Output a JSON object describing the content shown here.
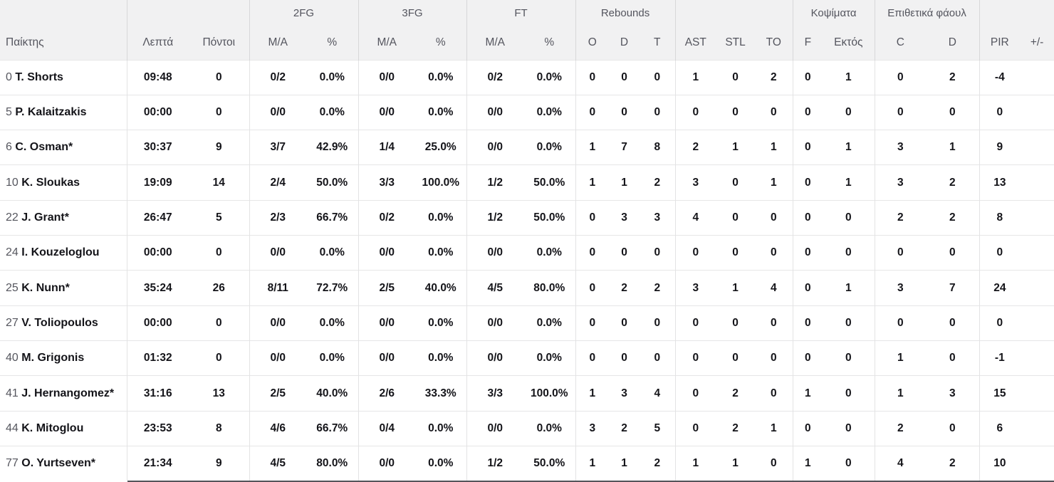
{
  "header": {
    "groups": [
      {
        "label": ""
      },
      {
        "label": ""
      },
      {
        "label": "2FG"
      },
      {
        "label": "3FG"
      },
      {
        "label": "FT"
      },
      {
        "label": "Rebounds"
      },
      {
        "label": ""
      },
      {
        "label": "Κοψίματα"
      },
      {
        "label": "Επιθετικά φάουλ"
      },
      {
        "label": ""
      }
    ],
    "columns": [
      "Παίκτης",
      "Λεπτά",
      "Πόντοι",
      "M/A",
      "%",
      "M/A",
      "%",
      "M/A",
      "%",
      "O",
      "D",
      "T",
      "AST",
      "STL",
      "TO",
      "F",
      "Εκτός",
      "C",
      "D",
      "PIR",
      "+/-"
    ]
  },
  "rows": [
    {
      "num": "0",
      "name": "T. Shorts",
      "min": "09:48",
      "pts": "0",
      "fg2": "0/2",
      "fg2p": "0.0%",
      "fg3": "0/0",
      "fg3p": "0.0%",
      "ft": "0/2",
      "ftp": "0.0%",
      "o": "0",
      "d": "0",
      "t": "0",
      "ast": "1",
      "stl": "0",
      "to": "2",
      "f": "0",
      "ektos": "1",
      "c": "0",
      "dd": "2",
      "pir": "-4",
      "pm": ""
    },
    {
      "num": "5",
      "name": "P. Kalaitzakis",
      "min": "00:00",
      "pts": "0",
      "fg2": "0/0",
      "fg2p": "0.0%",
      "fg3": "0/0",
      "fg3p": "0.0%",
      "ft": "0/0",
      "ftp": "0.0%",
      "o": "0",
      "d": "0",
      "t": "0",
      "ast": "0",
      "stl": "0",
      "to": "0",
      "f": "0",
      "ektos": "0",
      "c": "0",
      "dd": "0",
      "pir": "0",
      "pm": ""
    },
    {
      "num": "6",
      "name": "C. Osman*",
      "min": "30:37",
      "pts": "9",
      "fg2": "3/7",
      "fg2p": "42.9%",
      "fg3": "1/4",
      "fg3p": "25.0%",
      "ft": "0/0",
      "ftp": "0.0%",
      "o": "1",
      "d": "7",
      "t": "8",
      "ast": "2",
      "stl": "1",
      "to": "1",
      "f": "0",
      "ektos": "1",
      "c": "3",
      "dd": "1",
      "pir": "9",
      "pm": ""
    },
    {
      "num": "10",
      "name": "K. Sloukas",
      "min": "19:09",
      "pts": "14",
      "fg2": "2/4",
      "fg2p": "50.0%",
      "fg3": "3/3",
      "fg3p": "100.0%",
      "ft": "1/2",
      "ftp": "50.0%",
      "o": "1",
      "d": "1",
      "t": "2",
      "ast": "3",
      "stl": "0",
      "to": "1",
      "f": "0",
      "ektos": "1",
      "c": "3",
      "dd": "2",
      "pir": "13",
      "pm": ""
    },
    {
      "num": "22",
      "name": "J. Grant*",
      "min": "26:47",
      "pts": "5",
      "fg2": "2/3",
      "fg2p": "66.7%",
      "fg3": "0/2",
      "fg3p": "0.0%",
      "ft": "1/2",
      "ftp": "50.0%",
      "o": "0",
      "d": "3",
      "t": "3",
      "ast": "4",
      "stl": "0",
      "to": "0",
      "f": "0",
      "ektos": "0",
      "c": "2",
      "dd": "2",
      "pir": "8",
      "pm": ""
    },
    {
      "num": "24",
      "name": "I. Kouzeloglou",
      "min": "00:00",
      "pts": "0",
      "fg2": "0/0",
      "fg2p": "0.0%",
      "fg3": "0/0",
      "fg3p": "0.0%",
      "ft": "0/0",
      "ftp": "0.0%",
      "o": "0",
      "d": "0",
      "t": "0",
      "ast": "0",
      "stl": "0",
      "to": "0",
      "f": "0",
      "ektos": "0",
      "c": "0",
      "dd": "0",
      "pir": "0",
      "pm": ""
    },
    {
      "num": "25",
      "name": "K. Nunn*",
      "min": "35:24",
      "pts": "26",
      "fg2": "8/11",
      "fg2p": "72.7%",
      "fg3": "2/5",
      "fg3p": "40.0%",
      "ft": "4/5",
      "ftp": "80.0%",
      "o": "0",
      "d": "2",
      "t": "2",
      "ast": "3",
      "stl": "1",
      "to": "4",
      "f": "0",
      "ektos": "1",
      "c": "3",
      "dd": "7",
      "pir": "24",
      "pm": ""
    },
    {
      "num": "27",
      "name": "V. Toliopoulos",
      "min": "00:00",
      "pts": "0",
      "fg2": "0/0",
      "fg2p": "0.0%",
      "fg3": "0/0",
      "fg3p": "0.0%",
      "ft": "0/0",
      "ftp": "0.0%",
      "o": "0",
      "d": "0",
      "t": "0",
      "ast": "0",
      "stl": "0",
      "to": "0",
      "f": "0",
      "ektos": "0",
      "c": "0",
      "dd": "0",
      "pir": "0",
      "pm": ""
    },
    {
      "num": "40",
      "name": "M. Grigonis",
      "min": "01:32",
      "pts": "0",
      "fg2": "0/0",
      "fg2p": "0.0%",
      "fg3": "0/0",
      "fg3p": "0.0%",
      "ft": "0/0",
      "ftp": "0.0%",
      "o": "0",
      "d": "0",
      "t": "0",
      "ast": "0",
      "stl": "0",
      "to": "0",
      "f": "0",
      "ektos": "0",
      "c": "1",
      "dd": "0",
      "pir": "-1",
      "pm": ""
    },
    {
      "num": "41",
      "name": "J. Hernangomez*",
      "min": "31:16",
      "pts": "13",
      "fg2": "2/5",
      "fg2p": "40.0%",
      "fg3": "2/6",
      "fg3p": "33.3%",
      "ft": "3/3",
      "ftp": "100.0%",
      "o": "1",
      "d": "3",
      "t": "4",
      "ast": "0",
      "stl": "2",
      "to": "0",
      "f": "1",
      "ektos": "0",
      "c": "1",
      "dd": "3",
      "pir": "15",
      "pm": ""
    },
    {
      "num": "44",
      "name": "K. Mitoglou",
      "min": "23:53",
      "pts": "8",
      "fg2": "4/6",
      "fg2p": "66.7%",
      "fg3": "0/4",
      "fg3p": "0.0%",
      "ft": "0/0",
      "ftp": "0.0%",
      "o": "3",
      "d": "2",
      "t": "5",
      "ast": "0",
      "stl": "2",
      "to": "1",
      "f": "0",
      "ektos": "0",
      "c": "2",
      "dd": "0",
      "pir": "6",
      "pm": ""
    },
    {
      "num": "77",
      "name": "O. Yurtseven*",
      "min": "21:34",
      "pts": "9",
      "fg2": "4/5",
      "fg2p": "80.0%",
      "fg3": "0/0",
      "fg3p": "0.0%",
      "ft": "1/2",
      "ftp": "50.0%",
      "o": "1",
      "d": "1",
      "t": "2",
      "ast": "1",
      "stl": "1",
      "to": "0",
      "f": "1",
      "ektos": "0",
      "c": "4",
      "dd": "2",
      "pir": "10",
      "pm": ""
    }
  ],
  "colors": {
    "header_bg": "#f1f1f2",
    "header_text": "#54555e",
    "value_text": "#141419",
    "jersey_text": "#55565e",
    "row_border": "#e6e6e7",
    "group_border": "#d7d7d9",
    "bottom_border": "#54545a"
  }
}
